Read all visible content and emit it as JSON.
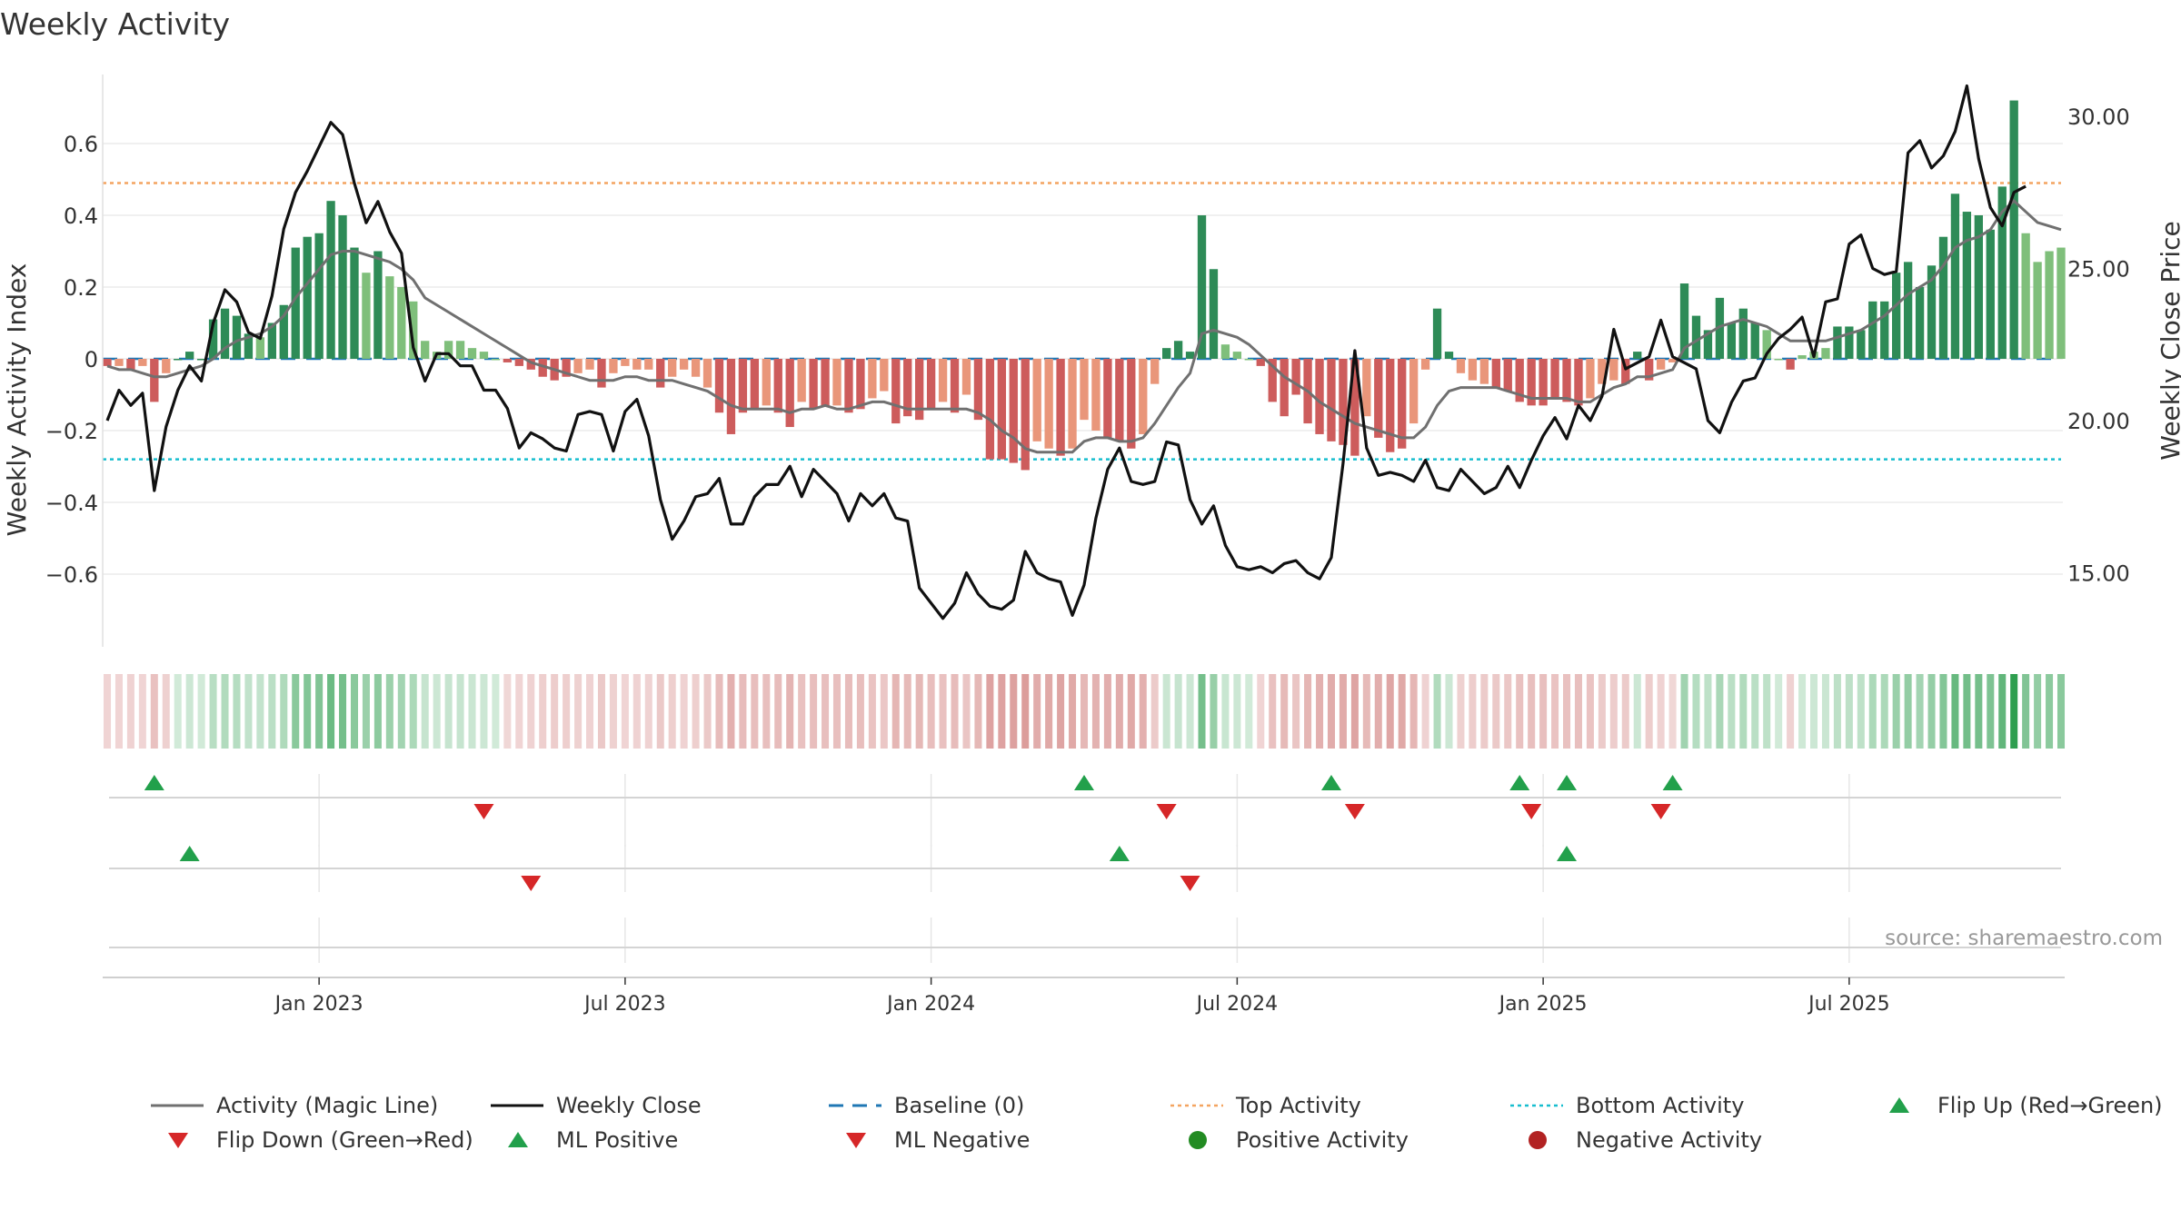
{
  "colors": {
    "pos_dark": "#2e8b57",
    "pos_light": "#7fbf7b",
    "neg_dark": "#cd5c5c",
    "neg_light": "#e9967a",
    "magic": "#707070",
    "close": "#111111",
    "baseline": "#1f77b4",
    "top": "#f4a460",
    "bottom": "#17becf",
    "up_marker": "#22a04b",
    "down_marker": "#d62728",
    "pos_dot": "#228b22",
    "neg_dot": "#b22222"
  },
  "chart_data": {
    "type": "bar",
    "title": "Weekly Activity",
    "ylabel": "Weekly Activity Index",
    "y2label": "Weekly Close Price",
    "ylim": [
      -0.78,
      0.78
    ],
    "y2lim": [
      12.0,
      31.5
    ],
    "yticks": [
      0.6,
      0.4,
      0.2,
      0,
      -0.2,
      -0.4,
      -0.6
    ],
    "ytick_labels": [
      "0.6",
      "0.4",
      "0.2",
      "0",
      "−0.2",
      "−0.4",
      "−0.6"
    ],
    "y2ticks": [
      30,
      25,
      20,
      15
    ],
    "y2tick_labels": [
      "30.00",
      "25.00",
      "20.00",
      "15.00"
    ],
    "x_start": "2022-08-26",
    "x_end": "2025-10-10",
    "xtick_labels": [
      "Jan 2023",
      "Jul 2023",
      "Jan 2024",
      "Jul 2024",
      "Jan 2025",
      "Jul 2025"
    ],
    "xtick_weeks": [
      18,
      44,
      70,
      96,
      122,
      148
    ],
    "reference_lines": {
      "baseline": 0,
      "top_activity": 0.49,
      "bottom_activity": -0.28
    },
    "activity": [
      -0.02,
      -0.02,
      -0.03,
      -0.02,
      -0.12,
      -0.04,
      0.0,
      0.02,
      0.0,
      0.11,
      0.14,
      0.12,
      0.07,
      0.06,
      0.1,
      0.15,
      0.31,
      0.34,
      0.35,
      0.44,
      0.4,
      0.31,
      0.24,
      0.3,
      0.23,
      0.2,
      0.16,
      0.05,
      0.02,
      0.05,
      0.05,
      0.03,
      0.02,
      0.0,
      -0.01,
      -0.02,
      -0.03,
      -0.05,
      -0.06,
      -0.05,
      -0.04,
      -0.03,
      -0.08,
      -0.04,
      -0.02,
      -0.03,
      -0.03,
      -0.08,
      -0.05,
      -0.03,
      -0.05,
      -0.08,
      -0.15,
      -0.21,
      -0.15,
      -0.14,
      -0.13,
      -0.15,
      -0.19,
      -0.12,
      -0.14,
      -0.13,
      -0.13,
      -0.15,
      -0.14,
      -0.11,
      -0.09,
      -0.18,
      -0.16,
      -0.17,
      -0.14,
      -0.12,
      -0.15,
      -0.1,
      -0.17,
      -0.28,
      -0.28,
      -0.29,
      -0.31,
      -0.23,
      -0.25,
      -0.27,
      -0.25,
      -0.17,
      -0.2,
      -0.22,
      -0.23,
      -0.25,
      -0.21,
      -0.07,
      0.03,
      0.05,
      0.02,
      0.4,
      0.25,
      0.04,
      0.02,
      0.0,
      -0.02,
      -0.12,
      -0.16,
      -0.1,
      -0.18,
      -0.21,
      -0.23,
      -0.24,
      -0.27,
      -0.16,
      -0.22,
      -0.26,
      -0.25,
      -0.18,
      -0.03,
      0.14,
      0.02,
      -0.04,
      -0.06,
      -0.07,
      -0.08,
      -0.09,
      -0.12,
      -0.13,
      -0.13,
      -0.11,
      -0.12,
      -0.13,
      -0.11,
      -0.07,
      -0.06,
      -0.07,
      0.02,
      -0.06,
      -0.03,
      -0.01,
      0.21,
      0.12,
      0.08,
      0.17,
      0.1,
      0.14,
      0.1,
      0.08,
      0.0,
      -0.03,
      0.01,
      0.02,
      0.03,
      0.09,
      0.09,
      0.08,
      0.16,
      0.16,
      0.24,
      0.27,
      0.2,
      0.26,
      0.34,
      0.46,
      0.41,
      0.4,
      0.36,
      0.48,
      0.72,
      0.35,
      0.27,
      0.3,
      0.31
    ],
    "magic_line": [
      -0.02,
      -0.03,
      -0.03,
      -0.04,
      -0.05,
      -0.05,
      -0.04,
      -0.03,
      -0.02,
      0.0,
      0.03,
      0.05,
      0.06,
      0.07,
      0.09,
      0.12,
      0.17,
      0.21,
      0.25,
      0.29,
      0.3,
      0.3,
      0.29,
      0.28,
      0.27,
      0.25,
      0.22,
      0.17,
      0.15,
      0.13,
      0.11,
      0.09,
      0.07,
      0.05,
      0.03,
      0.01,
      -0.01,
      -0.02,
      -0.03,
      -0.04,
      -0.05,
      -0.06,
      -0.06,
      -0.06,
      -0.05,
      -0.05,
      -0.06,
      -0.06,
      -0.06,
      -0.07,
      -0.08,
      -0.09,
      -0.11,
      -0.13,
      -0.14,
      -0.14,
      -0.14,
      -0.14,
      -0.15,
      -0.14,
      -0.14,
      -0.13,
      -0.14,
      -0.14,
      -0.13,
      -0.12,
      -0.12,
      -0.13,
      -0.14,
      -0.14,
      -0.14,
      -0.14,
      -0.14,
      -0.14,
      -0.15,
      -0.17,
      -0.2,
      -0.22,
      -0.25,
      -0.26,
      -0.26,
      -0.26,
      -0.26,
      -0.23,
      -0.22,
      -0.22,
      -0.23,
      -0.23,
      -0.22,
      -0.18,
      -0.13,
      -0.08,
      -0.04,
      0.07,
      0.08,
      0.07,
      0.06,
      0.04,
      0.01,
      -0.02,
      -0.05,
      -0.07,
      -0.09,
      -0.12,
      -0.14,
      -0.16,
      -0.18,
      -0.19,
      -0.2,
      -0.21,
      -0.22,
      -0.22,
      -0.19,
      -0.13,
      -0.09,
      -0.08,
      -0.08,
      -0.08,
      -0.08,
      -0.09,
      -0.1,
      -0.11,
      -0.11,
      -0.11,
      -0.11,
      -0.12,
      -0.12,
      -0.1,
      -0.08,
      -0.07,
      -0.05,
      -0.05,
      -0.04,
      -0.03,
      0.03,
      0.05,
      0.07,
      0.09,
      0.1,
      0.11,
      0.1,
      0.09,
      0.07,
      0.05,
      0.05,
      0.05,
      0.05,
      0.06,
      0.07,
      0.08,
      0.1,
      0.12,
      0.15,
      0.18,
      0.2,
      0.22,
      0.26,
      0.31,
      0.33,
      0.34,
      0.36,
      0.41,
      0.44,
      0.41,
      0.38,
      0.37,
      0.36
    ],
    "close": [
      20.0,
      21.0,
      20.5,
      20.9,
      17.7,
      19.8,
      21.0,
      21.8,
      21.3,
      23.2,
      24.3,
      23.9,
      22.9,
      22.7,
      24.1,
      26.3,
      27.5,
      28.2,
      29.0,
      29.8,
      29.4,
      27.8,
      26.5,
      27.2,
      26.2,
      25.5,
      22.4,
      21.3,
      22.2,
      22.2,
      21.8,
      21.8,
      21.0,
      21.0,
      20.4,
      19.1,
      19.6,
      19.4,
      19.1,
      19.0,
      20.2,
      20.3,
      20.2,
      19.0,
      20.3,
      20.7,
      19.5,
      17.4,
      16.1,
      16.7,
      17.5,
      17.6,
      18.1,
      16.6,
      16.6,
      17.5,
      17.9,
      17.9,
      18.5,
      17.5,
      18.4,
      18.0,
      17.6,
      16.7,
      17.6,
      17.2,
      17.6,
      16.8,
      16.7,
      14.5,
      14.0,
      13.5,
      14.0,
      15.0,
      14.3,
      13.9,
      13.8,
      14.1,
      15.7,
      15.0,
      14.8,
      14.7,
      13.6,
      14.6,
      16.8,
      18.4,
      19.1,
      18.0,
      17.9,
      18.0,
      19.3,
      19.2,
      17.4,
      16.6,
      17.2,
      15.9,
      15.2,
      15.1,
      15.2,
      15.0,
      15.3,
      15.4,
      15.0,
      14.8,
      15.5,
      18.6,
      22.3,
      19.1,
      18.2,
      18.3,
      18.2,
      18.0,
      18.7,
      17.8,
      17.7,
      18.4,
      18.0,
      17.6,
      17.8,
      18.5,
      17.8,
      18.7,
      19.5,
      20.1,
      19.4,
      20.5,
      20.0,
      20.8,
      23.0,
      21.7,
      21.9,
      22.1,
      23.3,
      22.1,
      21.9,
      21.7,
      20.0,
      19.6,
      20.6,
      21.3,
      21.4,
      22.2,
      22.7,
      23.0,
      23.4,
      22.1,
      23.9,
      24.0,
      25.8,
      26.1,
      25.0,
      24.8,
      24.9,
      28.8,
      29.2,
      28.3,
      28.7,
      29.5,
      31.0,
      28.6,
      27.0,
      26.4,
      27.5,
      27.7
    ],
    "overlay_lines": [
      {
        "name": "Top Activity",
        "value": 0.49,
        "style": "dotted"
      },
      {
        "name": "Bottom Activity",
        "value": -0.28,
        "style": "dotted"
      },
      {
        "name": "Baseline (0)",
        "value": 0,
        "style": "dashed"
      }
    ],
    "flip_up_weeks": [
      4,
      83,
      104,
      120,
      124,
      133
    ],
    "flip_down_weeks": [
      32,
      90,
      106,
      121,
      132
    ],
    "ml_positive_weeks": [
      7,
      86,
      124
    ],
    "ml_negative_weeks": [
      36,
      92
    ],
    "legend": [
      {
        "label": "Activity (Magic Line)",
        "kind": "line",
        "color": "#707070"
      },
      {
        "label": "Weekly Close",
        "kind": "line",
        "color": "#111111"
      },
      {
        "label": "Baseline (0)",
        "kind": "dash",
        "color": "#1f77b4"
      },
      {
        "label": "Top Activity",
        "kind": "dot",
        "color": "#f4a460"
      },
      {
        "label": "Bottom Activity",
        "kind": "dot",
        "color": "#17becf"
      },
      {
        "label": "Flip Up (Red→Green)",
        "kind": "up",
        "color": "#22a04b"
      },
      {
        "label": "Flip Down (Green→Red)",
        "kind": "down",
        "color": "#d62728"
      },
      {
        "label": "ML Positive",
        "kind": "up",
        "color": "#22a04b"
      },
      {
        "label": "ML Negative",
        "kind": "down",
        "color": "#d62728"
      },
      {
        "label": "Positive Activity",
        "kind": "circle",
        "color": "#228b22"
      },
      {
        "label": "Negative Activity",
        "kind": "circle",
        "color": "#b22222"
      }
    ],
    "source": "source: sharemaestro.com"
  }
}
